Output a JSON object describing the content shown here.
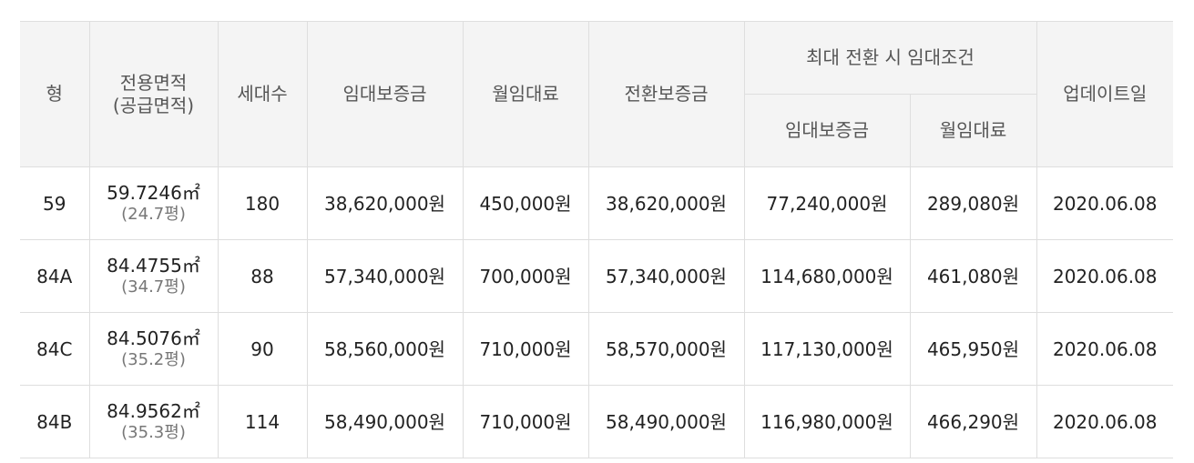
{
  "header": {
    "type": "형",
    "area_line1": "전용면적",
    "area_line2": "(공급면적)",
    "households": "세대수",
    "deposit": "임대보증금",
    "monthly_rent": "월임대료",
    "conversion_deposit": "전환보증금",
    "max_conversion_group": "최대 전환 시 임대조건",
    "max_deposit": "임대보증금",
    "max_monthly_rent": "월임대료",
    "updated": "업데이트일"
  },
  "rows": [
    {
      "type": "59",
      "area": "59.7246㎡",
      "supply_area": "(24.7평)",
      "households": "180",
      "deposit": "38,620,000원",
      "monthly_rent": "450,000원",
      "conversion_deposit": "38,620,000원",
      "max_deposit": "77,240,000원",
      "max_monthly_rent": "289,080원",
      "updated": "2020.06.08"
    },
    {
      "type": "84A",
      "area": "84.4755㎡",
      "supply_area": "(34.7평)",
      "households": "88",
      "deposit": "57,340,000원",
      "monthly_rent": "700,000원",
      "conversion_deposit": "57,340,000원",
      "max_deposit": "114,680,000원",
      "max_monthly_rent": "461,080원",
      "updated": "2020.06.08"
    },
    {
      "type": "84C",
      "area": "84.5076㎡",
      "supply_area": "(35.2평)",
      "households": "90",
      "deposit": "58,560,000원",
      "monthly_rent": "710,000원",
      "conversion_deposit": "58,570,000원",
      "max_deposit": "117,130,000원",
      "max_monthly_rent": "465,950원",
      "updated": "2020.06.08"
    },
    {
      "type": "84B",
      "area": "84.9562㎡",
      "supply_area": "(35.3평)",
      "households": "114",
      "deposit": "58,490,000원",
      "monthly_rent": "710,000원",
      "conversion_deposit": "58,490,000원",
      "max_deposit": "116,980,000원",
      "max_monthly_rent": "466,290원",
      "updated": "2020.06.08"
    }
  ]
}
